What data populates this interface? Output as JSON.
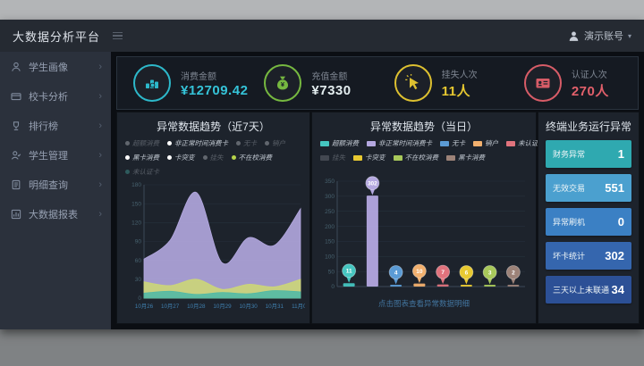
{
  "header": {
    "title": "大数据分析平台",
    "user_name": "演示账号",
    "caret": "▾"
  },
  "sidebar": {
    "chevron": "›",
    "items": [
      {
        "label": "学生画像"
      },
      {
        "label": "校卡分析"
      },
      {
        "label": "排行榜"
      },
      {
        "label": "学生管理"
      },
      {
        "label": "明细查询"
      },
      {
        "label": "大数据报表"
      }
    ]
  },
  "kpis": [
    {
      "label": "消费金额",
      "value": "¥12709.42",
      "value_color": "#35c3d8",
      "icon_color": "#2fc1d3"
    },
    {
      "label": "充值金额",
      "value": "¥7330",
      "value_color": "#e3edef",
      "icon_color": "#7cc142"
    },
    {
      "label": "挂失人次",
      "value": "11人",
      "value_color": "#e8c931",
      "icon_color": "#e8c931"
    },
    {
      "label": "认证人次",
      "value": "270人",
      "value_color": "#e2606b",
      "icon_color": "#e2606b"
    }
  ],
  "left_panel": {
    "title": "异常数据趋势（近7天）",
    "legend_rows": [
      [
        {
          "label": "超额消费",
          "dot": "#dfe3e8"
        },
        {
          "label": "非正常时间消费卡",
          "dot": "#ffffff"
        },
        {
          "label": "无卡",
          "dot": "#dfe3e8"
        },
        {
          "label": "销户",
          "dot": "#dfe3e8"
        }
      ],
      [
        {
          "label": "黑卡消费",
          "dot": "#ffffff"
        },
        {
          "label": "卡突变",
          "dot": "#ffffff"
        },
        {
          "label": "挂失",
          "dot": "#dfe3e8"
        },
        {
          "label": "不在校消费",
          "dot": "#b6d34a"
        }
      ],
      [
        {
          "label": "未认证卡",
          "dot": "#4fc3b8"
        }
      ]
    ]
  },
  "middle_panel": {
    "title": "异常数据趋势（当日）",
    "legend_rows": [
      [
        {
          "label": "超额消费",
          "color": "#45c5c0"
        },
        {
          "label": "非正常时间消费卡",
          "color": "#b4a8e0"
        },
        {
          "label": "无卡",
          "color": "#5b9bd5"
        },
        {
          "label": "销户",
          "color": "#f2b06e"
        },
        {
          "label": "未认证卡",
          "color": "#e0737d"
        }
      ],
      [
        {
          "label": "挂失",
          "color": "#8a8f98"
        },
        {
          "label": "卡突变",
          "color": "#e8c931"
        },
        {
          "label": "不在校消费",
          "color": "#a8c85a"
        },
        {
          "label": "黑卡消费",
          "color": "#9c8278"
        }
      ]
    ],
    "footer_link": "点击图表查看异常数据明细"
  },
  "right_panel": {
    "title": "终端业务运行异常",
    "rows": [
      {
        "label": "财务异常",
        "value": "1",
        "bg": "#2fa9b0"
      },
      {
        "label": "无效交易",
        "value": "551",
        "bg": "#4ba0cf"
      },
      {
        "label": "异常刷机",
        "value": "0",
        "bg": "#3b80c4"
      },
      {
        "label": "坏卡统计",
        "value": "302",
        "bg": "#3566ae"
      },
      {
        "label": "三天以上未联通",
        "value": "34",
        "bg": "#2c5096"
      }
    ]
  },
  "chart_data": [
    {
      "type": "area",
      "title": "异常数据趋势（近7天）",
      "x": [
        "10月26",
        "10月27",
        "10月28",
        "10月29",
        "10月30",
        "10月31",
        "11月01"
      ],
      "series": [
        {
          "name": "非正常时间消费卡",
          "color": "#b4a8e0",
          "values": [
            62,
            92,
            168,
            56,
            96,
            84,
            142
          ]
        },
        {
          "name": "不在校消费",
          "color": "#ccd678",
          "values": [
            26,
            20,
            30,
            14,
            22,
            18,
            30
          ]
        },
        {
          "name": "超额消费",
          "color": "#52b9a5",
          "values": [
            8,
            11,
            6,
            9,
            7,
            12,
            10
          ]
        }
      ],
      "ylim": [
        0,
        180
      ],
      "yticks": [
        0,
        30,
        60,
        90,
        120,
        150,
        180
      ],
      "grid": true,
      "legend_position": "top"
    },
    {
      "type": "bar",
      "title": "异常数据趋势（当日）",
      "categories": [
        "超额消费",
        "非正常时间消费卡",
        "无卡",
        "销户",
        "未认证卡",
        "卡突变",
        "不在校消费",
        "黑卡消费"
      ],
      "values": [
        11,
        302,
        4,
        10,
        7,
        6,
        3,
        2
      ],
      "colors": [
        "#45c5c0",
        "#b4a8e0",
        "#5b9bd5",
        "#f2b06e",
        "#e0737d",
        "#e8c931",
        "#a8c85a",
        "#9c8278"
      ],
      "ylim": [
        0,
        350
      ],
      "yticks": [
        0,
        50,
        100,
        150,
        200,
        250,
        300,
        350
      ],
      "grid": true,
      "markers": "balloon"
    }
  ]
}
